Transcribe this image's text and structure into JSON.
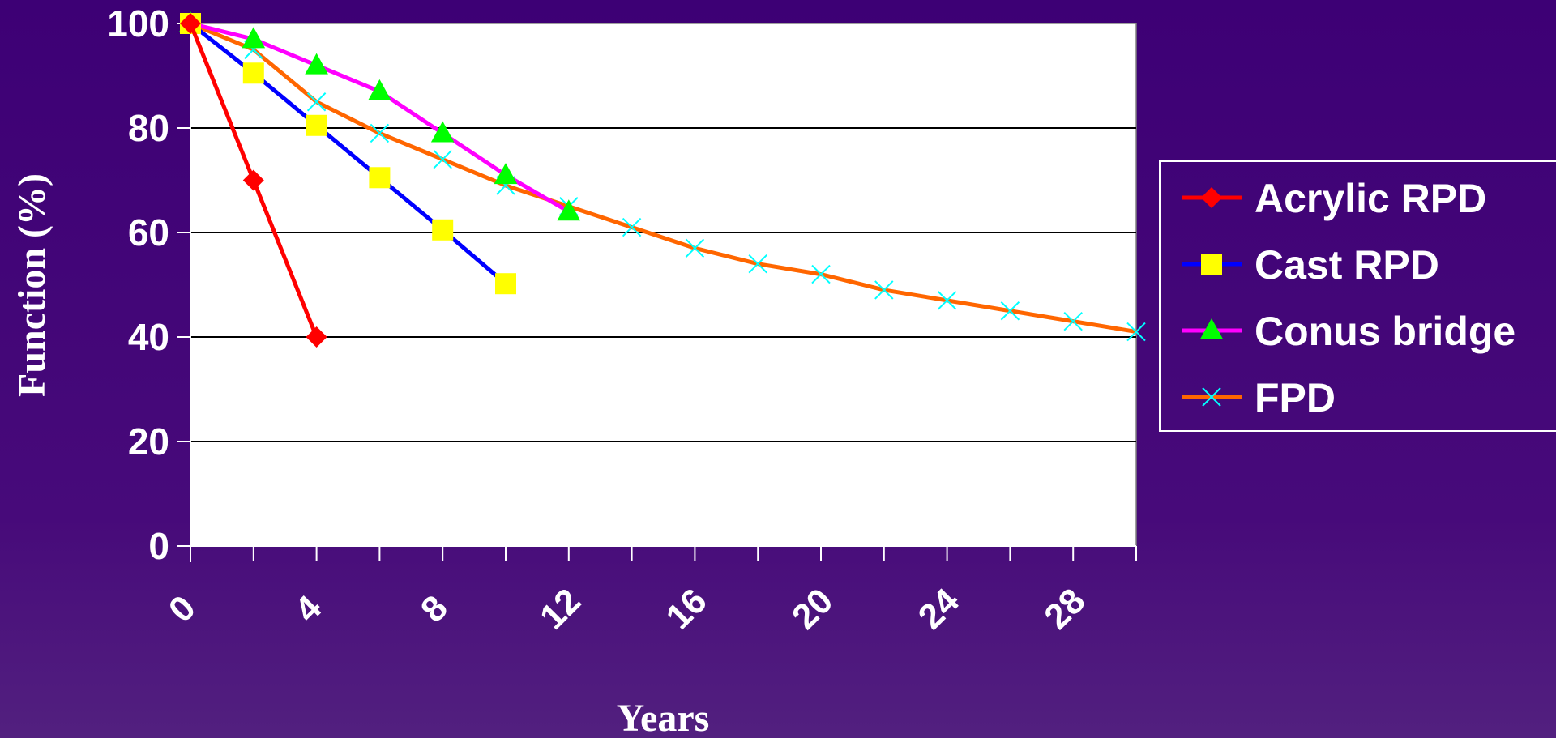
{
  "chart_data": {
    "type": "line",
    "xlabel": "Years",
    "ylabel": "Function (%)",
    "xlim": [
      0,
      30
    ],
    "ylim": [
      0,
      100
    ],
    "x_ticks": [
      "0",
      "4",
      "8",
      "12",
      "16",
      "20",
      "24",
      "28"
    ],
    "y_ticks": [
      "0",
      "20",
      "40",
      "60",
      "80",
      "100"
    ],
    "grid": "horizontal",
    "legend_position": "right",
    "series": [
      {
        "name": "Acrylic RPD",
        "color": "#ff0000",
        "marker": "diamond",
        "marker_color": "#ff0000",
        "points": [
          [
            0,
            100
          ],
          [
            2,
            70
          ],
          [
            4,
            40
          ]
        ]
      },
      {
        "name": "Cast RPD",
        "color": "#0000ff",
        "marker": "square",
        "marker_color": "#ffff00",
        "points": [
          [
            0,
            100
          ],
          [
            2,
            90.5
          ],
          [
            4,
            80.5
          ],
          [
            6,
            70.5
          ],
          [
            8,
            60.5
          ],
          [
            10,
            50.2
          ]
        ]
      },
      {
        "name": "Conus bridge",
        "color": "#ff00ff",
        "marker": "triangle",
        "marker_color": "#00ff00",
        "points": [
          [
            0,
            100
          ],
          [
            2,
            97
          ],
          [
            4,
            92
          ],
          [
            6,
            87
          ],
          [
            8,
            79
          ],
          [
            10,
            71
          ],
          [
            12,
            64
          ]
        ]
      },
      {
        "name": "FPD",
        "color": "#ff6600",
        "marker": "x",
        "marker_color": "#00ffff",
        "points": [
          [
            0,
            100
          ],
          [
            2,
            95
          ],
          [
            4,
            85
          ],
          [
            6,
            79
          ],
          [
            8,
            74
          ],
          [
            10,
            69
          ],
          [
            12,
            65
          ],
          [
            14,
            61
          ],
          [
            16,
            57
          ],
          [
            18,
            54
          ],
          [
            20,
            52
          ],
          [
            22,
            49
          ],
          [
            24,
            47
          ],
          [
            26,
            45
          ],
          [
            28,
            43
          ],
          [
            30,
            41
          ]
        ]
      }
    ]
  }
}
